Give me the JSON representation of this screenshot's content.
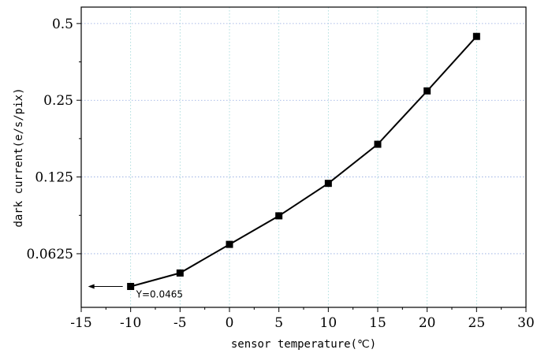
{
  "chart_data": {
    "type": "line",
    "xlabel": "sensor temperature(℃)",
    "ylabel": "dark current(e/s/pix)",
    "xlim": [
      -15,
      30
    ],
    "ylim": [
      0.0385,
      0.58
    ],
    "y_scale": "log",
    "x_ticks": [
      -15,
      -10,
      -5,
      0,
      5,
      10,
      15,
      20,
      25,
      30
    ],
    "x_tick_labels": [
      "-15",
      "-10",
      "-5",
      "0",
      "5",
      "10",
      "15",
      "20",
      "25",
      "30"
    ],
    "y_ticks": [
      0.0625,
      0.125,
      0.25,
      0.5
    ],
    "y_tick_labels": [
      "0.0625",
      "0.125",
      "0.25",
      "0.5"
    ],
    "grid": true,
    "series": [
      {
        "x": [
          -10,
          -5,
          0,
          5,
          10,
          15,
          20,
          25
        ],
        "y": [
          0.0465,
          0.0525,
          0.068,
          0.088,
          0.118,
          0.168,
          0.272,
          0.445
        ],
        "marker": "square",
        "color": "#000000"
      }
    ],
    "annotations": [
      {
        "text": "Y=0.0465",
        "x": -10,
        "y": 0.0465,
        "arrow": "left"
      }
    ]
  }
}
